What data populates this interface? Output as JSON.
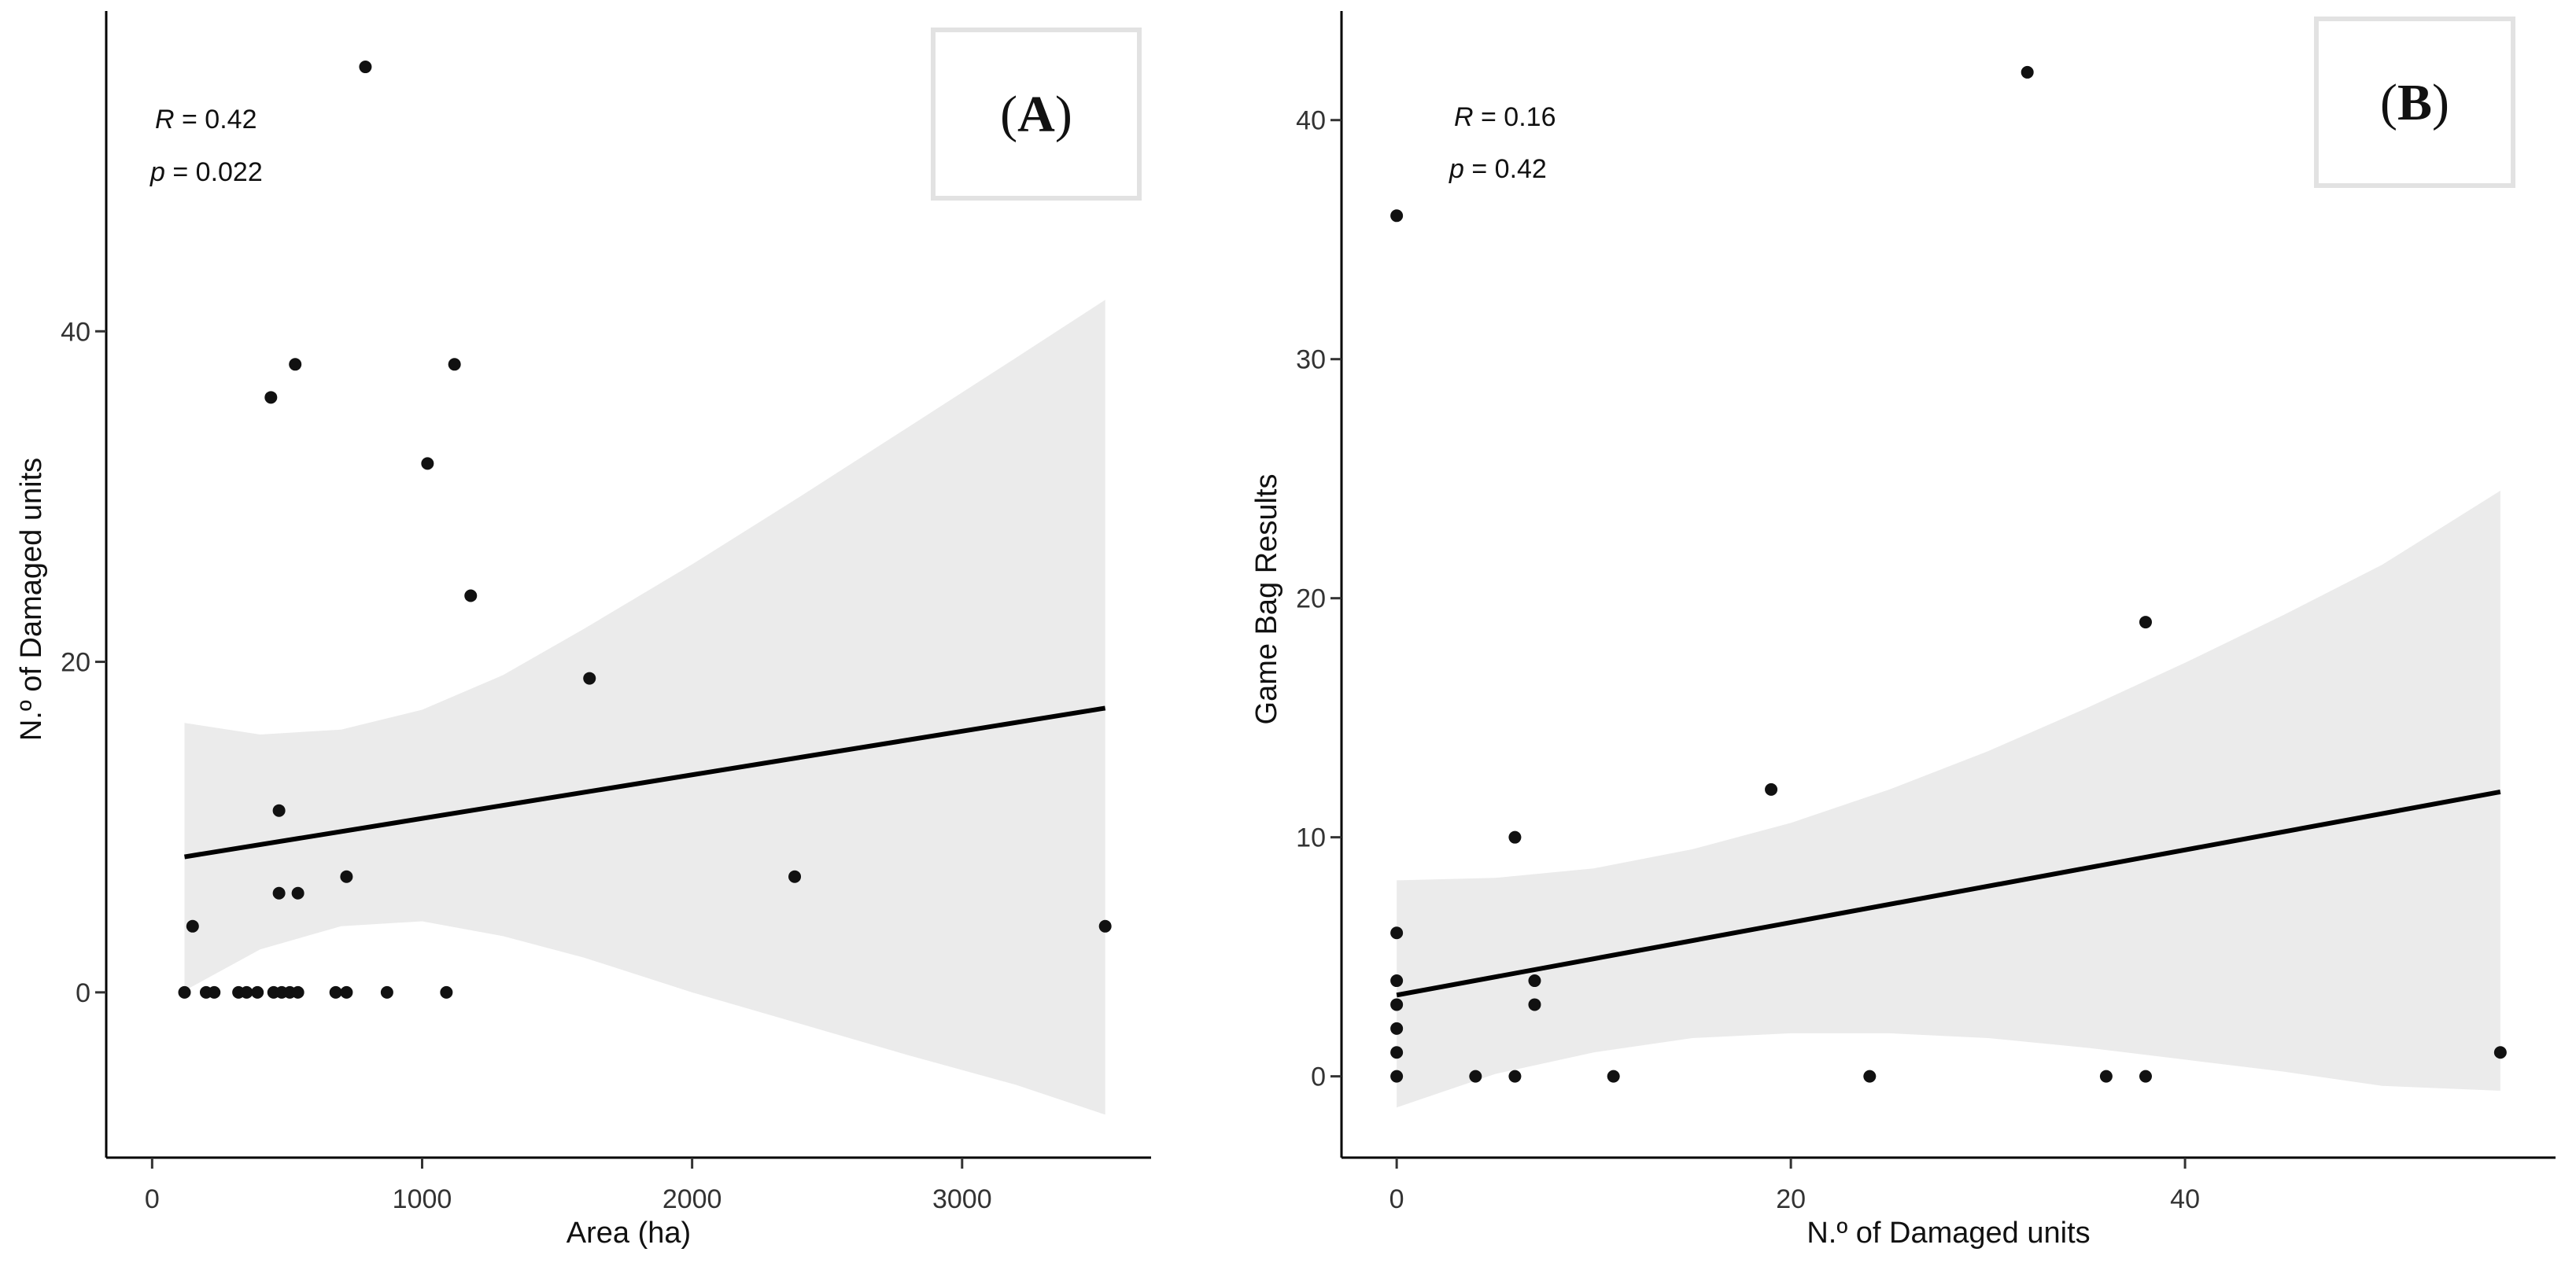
{
  "chart_data": [
    {
      "type": "scatter",
      "panel_label": "A",
      "annotation": {
        "r_label": "R",
        "r_value": "= 0.42",
        "p_label": "p",
        "p_value": "= 0.022"
      },
      "xlabel": "Area (ha)",
      "ylabel": "N.º of Damaged units",
      "xlim": [
        -170,
        3700
      ],
      "ylim": [
        -10,
        59
      ],
      "xticks": [
        0,
        1000,
        2000,
        3000
      ],
      "yticks": [
        0,
        20,
        40
      ],
      "xtick_labels": [
        "0",
        "1000",
        "2000",
        "3000"
      ],
      "ytick_labels": [
        "0",
        "20",
        "40"
      ],
      "points": [
        {
          "x": 790,
          "y": 56
        },
        {
          "x": 530,
          "y": 38
        },
        {
          "x": 1120,
          "y": 38
        },
        {
          "x": 440,
          "y": 36
        },
        {
          "x": 1020,
          "y": 32
        },
        {
          "x": 1180,
          "y": 24
        },
        {
          "x": 1620,
          "y": 19
        },
        {
          "x": 470,
          "y": 11
        },
        {
          "x": 720,
          "y": 7
        },
        {
          "x": 2380,
          "y": 7
        },
        {
          "x": 470,
          "y": 6
        },
        {
          "x": 540,
          "y": 6
        },
        {
          "x": 150,
          "y": 4
        },
        {
          "x": 3530,
          "y": 4
        },
        {
          "x": 120,
          "y": 0
        },
        {
          "x": 200,
          "y": 0
        },
        {
          "x": 230,
          "y": 0
        },
        {
          "x": 320,
          "y": 0
        },
        {
          "x": 350,
          "y": 0
        },
        {
          "x": 390,
          "y": 0
        },
        {
          "x": 450,
          "y": 0
        },
        {
          "x": 480,
          "y": 0
        },
        {
          "x": 510,
          "y": 0
        },
        {
          "x": 540,
          "y": 0
        },
        {
          "x": 680,
          "y": 0
        },
        {
          "x": 720,
          "y": 0
        },
        {
          "x": 870,
          "y": 0
        },
        {
          "x": 1090,
          "y": 0
        }
      ],
      "fit": {
        "x": [
          120,
          3530
        ],
        "y": [
          8.2,
          17.2
        ]
      },
      "confidence_band": {
        "x": [
          120,
          400,
          700,
          1000,
          1300,
          1600,
          2000,
          2400,
          2800,
          3200,
          3530
        ],
        "upper": [
          16.3,
          15.6,
          15.9,
          17.1,
          19.2,
          22.0,
          25.9,
          30.0,
          34.2,
          38.4,
          41.9
        ],
        "lower": [
          0.1,
          2.6,
          4.0,
          4.3,
          3.4,
          2.1,
          0.0,
          -1.9,
          -3.8,
          -5.6,
          -7.4
        ]
      }
    },
    {
      "type": "scatter",
      "panel_label": "B",
      "annotation": {
        "r_label": "R",
        "r_value": "= 0.16",
        "p_label": "p",
        "p_value": "= 0.42"
      },
      "xlabel": "N.º of Damaged units",
      "ylabel": "Game Bag Results",
      "xlim": [
        -2.8,
        58.8
      ],
      "ylim": [
        -3.4,
        44.3
      ],
      "xticks": [
        0,
        20,
        40
      ],
      "yticks": [
        0,
        10,
        20,
        30,
        40
      ],
      "xtick_labels": [
        "0",
        "20",
        "40"
      ],
      "ytick_labels": [
        "0",
        "10",
        "20",
        "30",
        "40"
      ],
      "points": [
        {
          "x": 32,
          "y": 42
        },
        {
          "x": 0,
          "y": 36
        },
        {
          "x": 38,
          "y": 19
        },
        {
          "x": 19,
          "y": 12
        },
        {
          "x": 6,
          "y": 10
        },
        {
          "x": 0,
          "y": 6
        },
        {
          "x": 0,
          "y": 4
        },
        {
          "x": 7,
          "y": 4
        },
        {
          "x": 0,
          "y": 3
        },
        {
          "x": 7,
          "y": 3
        },
        {
          "x": 0,
          "y": 2
        },
        {
          "x": 0,
          "y": 1
        },
        {
          "x": 56,
          "y": 1
        },
        {
          "x": 0,
          "y": 0
        },
        {
          "x": 4,
          "y": 0
        },
        {
          "x": 6,
          "y": 0
        },
        {
          "x": 11,
          "y": 0
        },
        {
          "x": 24,
          "y": 0
        },
        {
          "x": 36,
          "y": 0
        },
        {
          "x": 38,
          "y": 0
        }
      ],
      "fit": {
        "x": [
          0,
          56
        ],
        "y": [
          3.4,
          11.9
        ]
      },
      "confidence_band": {
        "x": [
          0,
          5,
          10,
          15,
          20,
          25,
          30,
          35,
          40,
          45,
          50,
          56
        ],
        "upper": [
          8.2,
          8.3,
          8.7,
          9.5,
          10.6,
          12.0,
          13.6,
          15.4,
          17.3,
          19.3,
          21.4,
          24.5
        ],
        "lower": [
          -1.3,
          0.1,
          1.0,
          1.6,
          1.8,
          1.8,
          1.6,
          1.2,
          0.7,
          0.2,
          -0.4,
          -0.6
        ]
      }
    }
  ]
}
